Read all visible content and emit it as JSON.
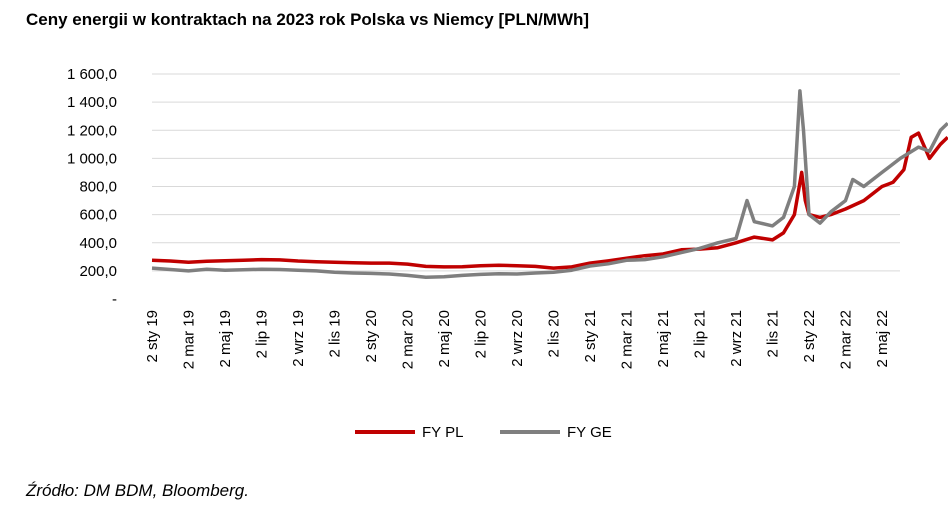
{
  "chart_data": {
    "type": "line",
    "title": "Ceny energii w kontraktach na 2023 rok Polska vs Niemcy [PLN/MWh]",
    "source": "Źródło: DM BDM, Bloomberg.",
    "xlabel": "",
    "ylabel": "",
    "ylim": [
      0,
      1600
    ],
    "y_ticks": [
      "-",
      "200,0",
      "400,0",
      "600,0",
      "800,0",
      "1 000,0",
      "1 200,0",
      "1 400,0",
      "1 600,0"
    ],
    "x_ticks": [
      "2 sty 19",
      "2 mar 19",
      "2 maj 19",
      "2 lip 19",
      "2 wrz 19",
      "2 lis 19",
      "2 sty 20",
      "2 mar 20",
      "2 maj 20",
      "2 lip 20",
      "2 wrz 20",
      "2 lis 20",
      "2 sty 21",
      "2 mar 21",
      "2 maj 21",
      "2 lip 21",
      "2 wrz 21",
      "2 lis 21",
      "2 sty 22",
      "2 mar 22",
      "2 maj 22"
    ],
    "grid": true,
    "legend_position": "bottom",
    "series": [
      {
        "name": "FY PL",
        "color": "#c00000",
        "points": [
          [
            0,
            275
          ],
          [
            0.5,
            270
          ],
          [
            1,
            262
          ],
          [
            1.5,
            268
          ],
          [
            2,
            272
          ],
          [
            2.5,
            275
          ],
          [
            3,
            280
          ],
          [
            3.5,
            278
          ],
          [
            4,
            270
          ],
          [
            4.5,
            265
          ],
          [
            5,
            262
          ],
          [
            5.5,
            258
          ],
          [
            6,
            255
          ],
          [
            6.5,
            255
          ],
          [
            7,
            248
          ],
          [
            7.5,
            232
          ],
          [
            8,
            228
          ],
          [
            8.5,
            230
          ],
          [
            9,
            236
          ],
          [
            9.5,
            240
          ],
          [
            10,
            237
          ],
          [
            10.5,
            232
          ],
          [
            11,
            220
          ],
          [
            11.5,
            228
          ],
          [
            12,
            255
          ],
          [
            12.5,
            272
          ],
          [
            13,
            290
          ],
          [
            13.5,
            308
          ],
          [
            14,
            320
          ],
          [
            14.5,
            350
          ],
          [
            15,
            355
          ],
          [
            15.5,
            365
          ],
          [
            16,
            400
          ],
          [
            16.5,
            440
          ],
          [
            17,
            420
          ],
          [
            17.3,
            470
          ],
          [
            17.6,
            600
          ],
          [
            17.8,
            900
          ],
          [
            17.9,
            700
          ],
          [
            18,
            600
          ],
          [
            18.3,
            580
          ],
          [
            18.6,
            600
          ],
          [
            19,
            640
          ],
          [
            19.5,
            700
          ],
          [
            20,
            800
          ],
          [
            20.3,
            830
          ],
          [
            20.6,
            920
          ],
          [
            20.8,
            1150
          ],
          [
            21,
            1180
          ],
          [
            21.3,
            1000
          ],
          [
            21.6,
            1100
          ],
          [
            21.8,
            1150
          ]
        ]
      },
      {
        "name": "FY GE",
        "color": "#7f7f7f",
        "points": [
          [
            0,
            220
          ],
          [
            0.5,
            210
          ],
          [
            1,
            200
          ],
          [
            1.5,
            212
          ],
          [
            2,
            205
          ],
          [
            2.5,
            208
          ],
          [
            3,
            212
          ],
          [
            3.5,
            210
          ],
          [
            4,
            205
          ],
          [
            4.5,
            200
          ],
          [
            5,
            190
          ],
          [
            5.5,
            185
          ],
          [
            6,
            182
          ],
          [
            6.5,
            178
          ],
          [
            7,
            168
          ],
          [
            7.5,
            155
          ],
          [
            8,
            158
          ],
          [
            8.5,
            168
          ],
          [
            9,
            175
          ],
          [
            9.5,
            180
          ],
          [
            10,
            178
          ],
          [
            10.5,
            185
          ],
          [
            11,
            190
          ],
          [
            11.5,
            205
          ],
          [
            12,
            235
          ],
          [
            12.5,
            250
          ],
          [
            13,
            275
          ],
          [
            13.5,
            280
          ],
          [
            14,
            300
          ],
          [
            14.5,
            330
          ],
          [
            15,
            360
          ],
          [
            15.5,
            400
          ],
          [
            16,
            430
          ],
          [
            16.3,
            700
          ],
          [
            16.5,
            550
          ],
          [
            17,
            520
          ],
          [
            17.3,
            580
          ],
          [
            17.6,
            800
          ],
          [
            17.75,
            1480
          ],
          [
            17.85,
            1200
          ],
          [
            18,
            600
          ],
          [
            18.3,
            540
          ],
          [
            18.6,
            620
          ],
          [
            19,
            700
          ],
          [
            19.2,
            850
          ],
          [
            19.5,
            800
          ],
          [
            20,
            900
          ],
          [
            20.5,
            1000
          ],
          [
            21,
            1080
          ],
          [
            21.3,
            1050
          ],
          [
            21.6,
            1200
          ],
          [
            21.8,
            1250
          ]
        ]
      }
    ]
  }
}
